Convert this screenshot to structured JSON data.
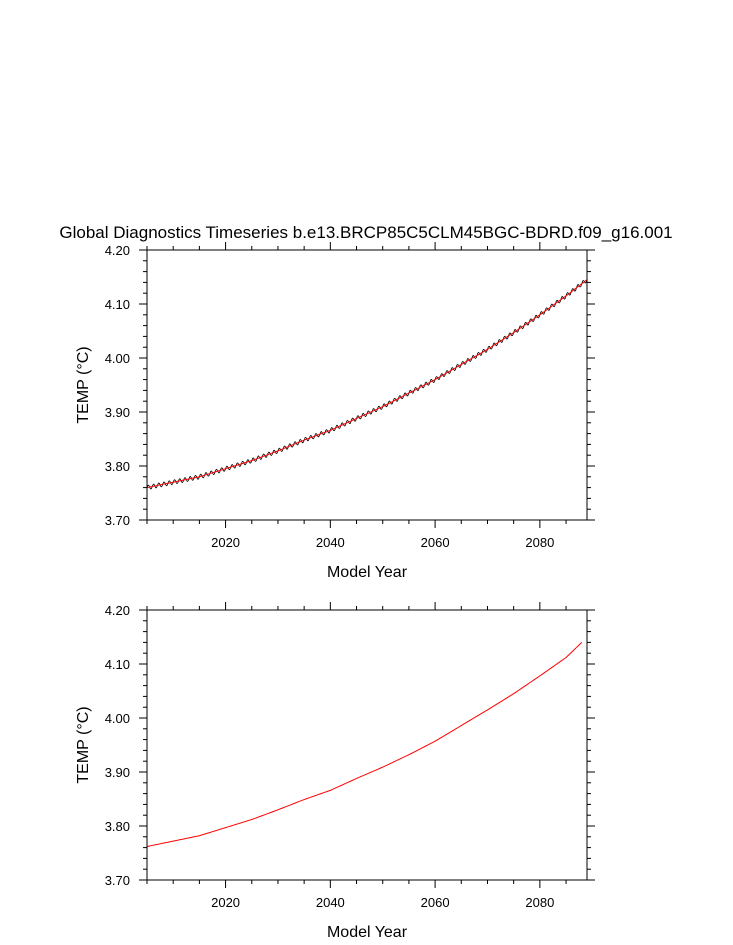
{
  "title": "Global Diagnostics Timeseries b.e13.BRCP85C5CLM45BGC-BDRD.f09_g16.001",
  "colors": {
    "annual": "#ff0000",
    "monthly": "#000000",
    "axis": "#000000"
  },
  "chart_data": [
    {
      "type": "line",
      "xlabel": "Model Year",
      "ylabel": "TEMP (°C)",
      "xlim": [
        2005,
        2089
      ],
      "ylim": [
        3.7,
        4.2
      ],
      "xticks": [
        2020,
        2040,
        2060,
        2080
      ],
      "xtick_labels": [
        "2020",
        "2040",
        "2060",
        "2080"
      ],
      "yticks": [
        3.7,
        3.8,
        3.9,
        4.0,
        4.1,
        4.2
      ],
      "ytick_labels": [
        "3.70",
        "3.80",
        "3.90",
        "4.00",
        "4.10",
        "4.20"
      ],
      "grid": false,
      "series": [
        {
          "kind": "monthly",
          "color": "#000000",
          "seasonal_amplitude": 0.004,
          "x": [
            2005,
            2010,
            2015,
            2020,
            2025,
            2030,
            2035,
            2040,
            2045,
            2050,
            2055,
            2060,
            2065,
            2070,
            2075,
            2080,
            2085,
            2089
          ],
          "y": [
            3.76,
            3.77,
            3.78,
            3.795,
            3.81,
            3.828,
            3.848,
            3.866,
            3.888,
            3.91,
            3.935,
            3.96,
            3.988,
            4.016,
            4.047,
            4.08,
            4.115,
            4.145
          ]
        },
        {
          "kind": "annual",
          "color": "#ff0000",
          "x": [
            2005,
            2010,
            2015,
            2020,
            2025,
            2030,
            2035,
            2040,
            2045,
            2050,
            2055,
            2060,
            2065,
            2070,
            2075,
            2080,
            2085,
            2089
          ],
          "y": [
            3.76,
            3.77,
            3.78,
            3.795,
            3.81,
            3.828,
            3.848,
            3.866,
            3.888,
            3.91,
            3.935,
            3.96,
            3.988,
            4.016,
            4.047,
            4.08,
            4.115,
            4.145
          ]
        }
      ]
    },
    {
      "type": "line",
      "xlabel": "Model Year",
      "ylabel": "TEMP (°C)",
      "xlim": [
        2005,
        2089
      ],
      "ylim": [
        3.7,
        4.2
      ],
      "xticks": [
        2020,
        2040,
        2060,
        2080
      ],
      "xtick_labels": [
        "2020",
        "2040",
        "2060",
        "2080"
      ],
      "yticks": [
        3.7,
        3.8,
        3.9,
        4.0,
        4.1,
        4.2
      ],
      "ytick_labels": [
        "3.70",
        "3.80",
        "3.90",
        "4.00",
        "4.10",
        "4.20"
      ],
      "grid": false,
      "series": [
        {
          "kind": "annual",
          "color": "#ff0000",
          "x": [
            2005,
            2010,
            2015,
            2020,
            2025,
            2030,
            2035,
            2040,
            2045,
            2050,
            2055,
            2060,
            2065,
            2070,
            2075,
            2080,
            2085,
            2088
          ],
          "y": [
            3.762,
            3.772,
            3.782,
            3.797,
            3.812,
            3.83,
            3.849,
            3.866,
            3.888,
            3.909,
            3.932,
            3.957,
            3.986,
            4.015,
            4.045,
            4.078,
            4.112,
            4.14
          ]
        }
      ]
    }
  ]
}
